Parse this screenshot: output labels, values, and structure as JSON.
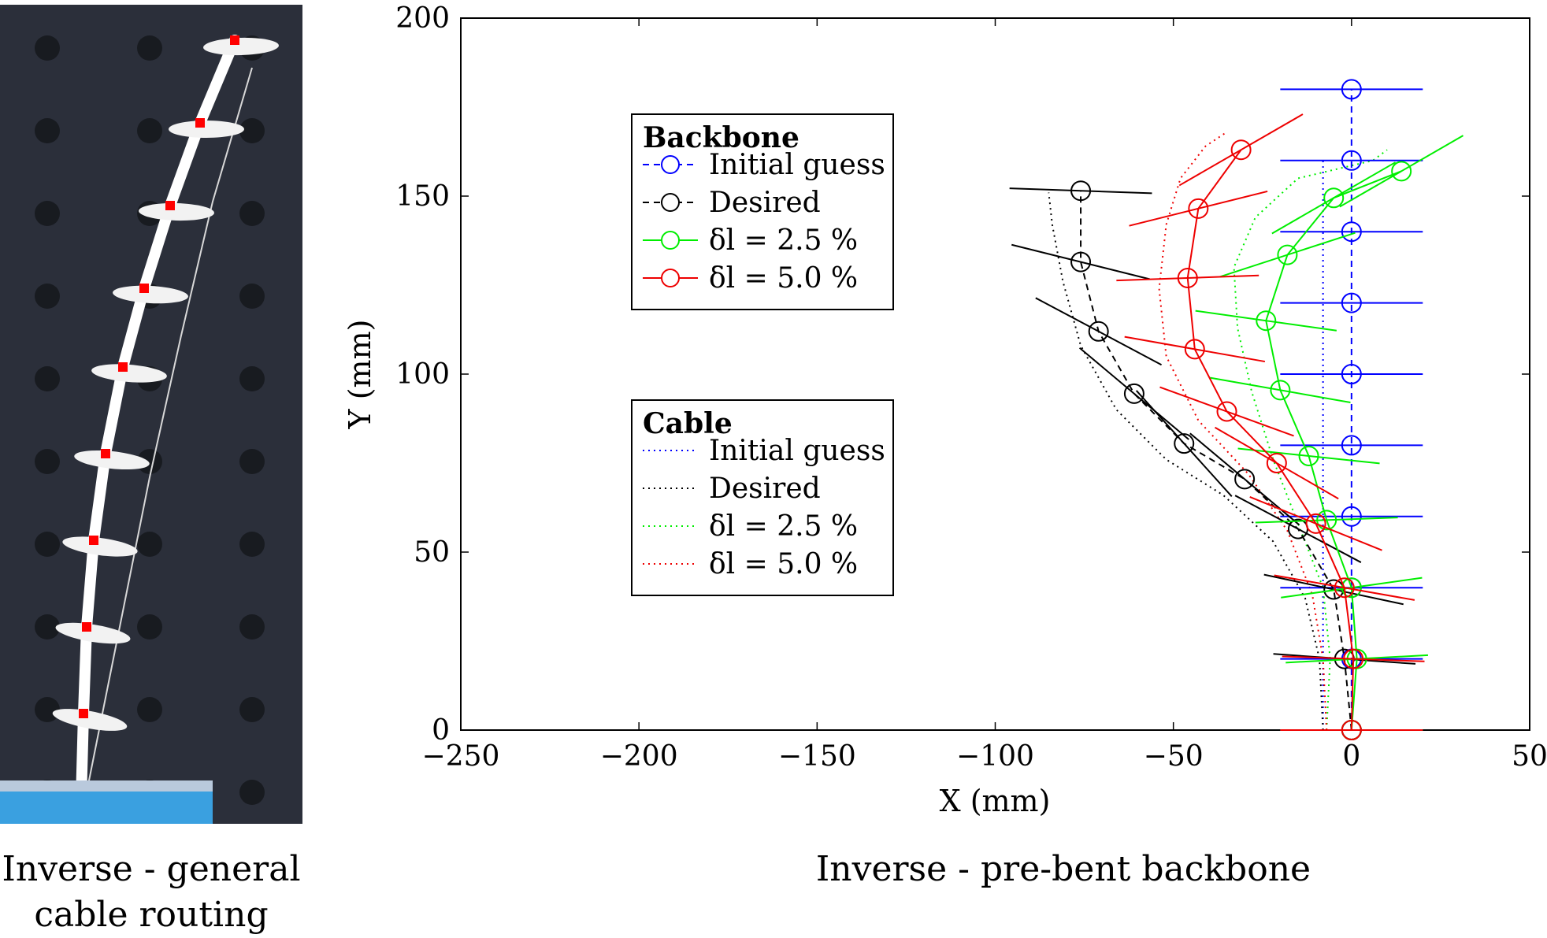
{
  "photo": {
    "background": "#2b2f3a",
    "backbone_color": "#ffffff",
    "marker_color": "#ff0000",
    "base_color": "#3aa0e0"
  },
  "captions": {
    "left_line1": "Inverse - general",
    "left_line2": "cable routing",
    "right": "Inverse - pre-bent backbone"
  },
  "chart_data": {
    "type": "line",
    "title": "",
    "xlabel": "X (mm)",
    "ylabel": "Y (mm)",
    "xlim": [
      -250,
      50
    ],
    "ylim": [
      0,
      200
    ],
    "xticks": [
      -250,
      -200,
      -150,
      -100,
      -50,
      0,
      50
    ],
    "yticks": [
      0,
      50,
      100,
      150,
      200
    ],
    "xtick_labels": [
      "−250",
      "−200",
      "−150",
      "−100",
      "−50",
      "0",
      "50"
    ],
    "ytick_labels": [
      "0",
      "50",
      "100",
      "150",
      "200"
    ],
    "grid": false,
    "legends": [
      {
        "title": "Backbone",
        "entries": [
          {
            "label": "Initial guess",
            "color": "#0000ff",
            "style": "dashed-circle"
          },
          {
            "label": "Desired",
            "color": "#000000",
            "style": "dashed-circle"
          },
          {
            "label": "δl = 2.5 %",
            "color": "#00ee00",
            "style": "solid-circle"
          },
          {
            "label": "δl = 5.0 %",
            "color": "#ee0000",
            "style": "solid-circle"
          }
        ]
      },
      {
        "title": "Cable",
        "entries": [
          {
            "label": "Initial guess",
            "color": "#0000ff",
            "style": "dotted"
          },
          {
            "label": "Desired",
            "color": "#000000",
            "style": "dotted"
          },
          {
            "label": "δl = 2.5 %",
            "color": "#00ee00",
            "style": "dotted"
          },
          {
            "label": "δl = 5.0 %",
            "color": "#ee0000",
            "style": "dotted"
          }
        ]
      }
    ],
    "backbone_series": [
      {
        "name": "Initial guess",
        "color": "#0000ff",
        "dash": "8,6",
        "x": [
          0,
          0,
          0,
          0,
          0,
          0,
          0,
          0,
          0,
          0
        ],
        "y": [
          0,
          20,
          40,
          60,
          80,
          100,
          120,
          140,
          160,
          180
        ],
        "angle_deg": [
          0,
          0,
          0,
          0,
          0,
          0,
          0,
          0,
          0,
          0
        ]
      },
      {
        "name": "Desired",
        "color": "#000000",
        "dash": "8,6",
        "x": [
          0,
          -2,
          -5,
          -15,
          -30,
          -47,
          -61,
          -71,
          -76,
          -76
        ],
        "y": [
          0,
          20,
          39.5,
          56.5,
          70.5,
          80.5,
          94.5,
          112,
          131.5,
          151.5
        ],
        "angle_deg": [
          0,
          4,
          12,
          28,
          40,
          48,
          40,
          28,
          14,
          2
        ]
      },
      {
        "name": "δl = 2.5 %",
        "color": "#00ee00",
        "dash": "",
        "x": [
          0,
          1.5,
          0,
          -7,
          -12,
          -20,
          -24,
          -18,
          -5,
          14
        ],
        "y": [
          0,
          20,
          40,
          59,
          77,
          95.5,
          115,
          133.5,
          149.5,
          157
        ],
        "angle_deg": [
          0,
          -3,
          -8,
          -2,
          6,
          10,
          8,
          -18,
          -30,
          -30
        ]
      },
      {
        "name": "δl = 5.0 %",
        "color": "#ee0000",
        "dash": "",
        "x": [
          0,
          0.5,
          -2,
          -10,
          -21,
          -35,
          -44,
          -46,
          -43,
          -31
        ],
        "y": [
          0,
          20,
          40,
          58,
          75,
          89.5,
          107,
          127,
          146.5,
          163
        ],
        "angle_deg": [
          0,
          2,
          10,
          22,
          30,
          20,
          10,
          -2,
          -14,
          -30
        ]
      }
    ],
    "cable_series": [
      {
        "name": "Initial guess",
        "color": "#0000ff",
        "x": [
          -8,
          -8,
          -8,
          -8,
          -8,
          -8,
          -8,
          -8,
          -8
        ],
        "y": [
          0,
          20,
          40,
          60,
          80,
          100,
          120,
          140,
          160
        ]
      },
      {
        "name": "Desired",
        "color": "#000000",
        "x": [
          -8,
          -9,
          -13,
          -22,
          -36,
          -52,
          -66,
          -76,
          -81,
          -84,
          -85
        ],
        "y": [
          0,
          20,
          37,
          53,
          66,
          76,
          90,
          108,
          126,
          142,
          151
        ]
      },
      {
        "name": "δl = 2.5 %",
        "color": "#00ee00",
        "x": [
          -7,
          -6,
          -8,
          -15,
          -22,
          -28,
          -32,
          -33,
          -27,
          -15,
          6,
          10
        ],
        "y": [
          0,
          20,
          40,
          58,
          76,
          95,
          113,
          130,
          144,
          155,
          160,
          163
        ]
      },
      {
        "name": "δl = 5.0 %",
        "color": "#ee0000",
        "x": [
          -7,
          -8,
          -11,
          -18,
          -29,
          -43,
          -52,
          -54,
          -52,
          -48,
          -41,
          -35
        ],
        "y": [
          0,
          20,
          38,
          56,
          72,
          87,
          105,
          124,
          142,
          155,
          164,
          168
        ]
      }
    ]
  }
}
